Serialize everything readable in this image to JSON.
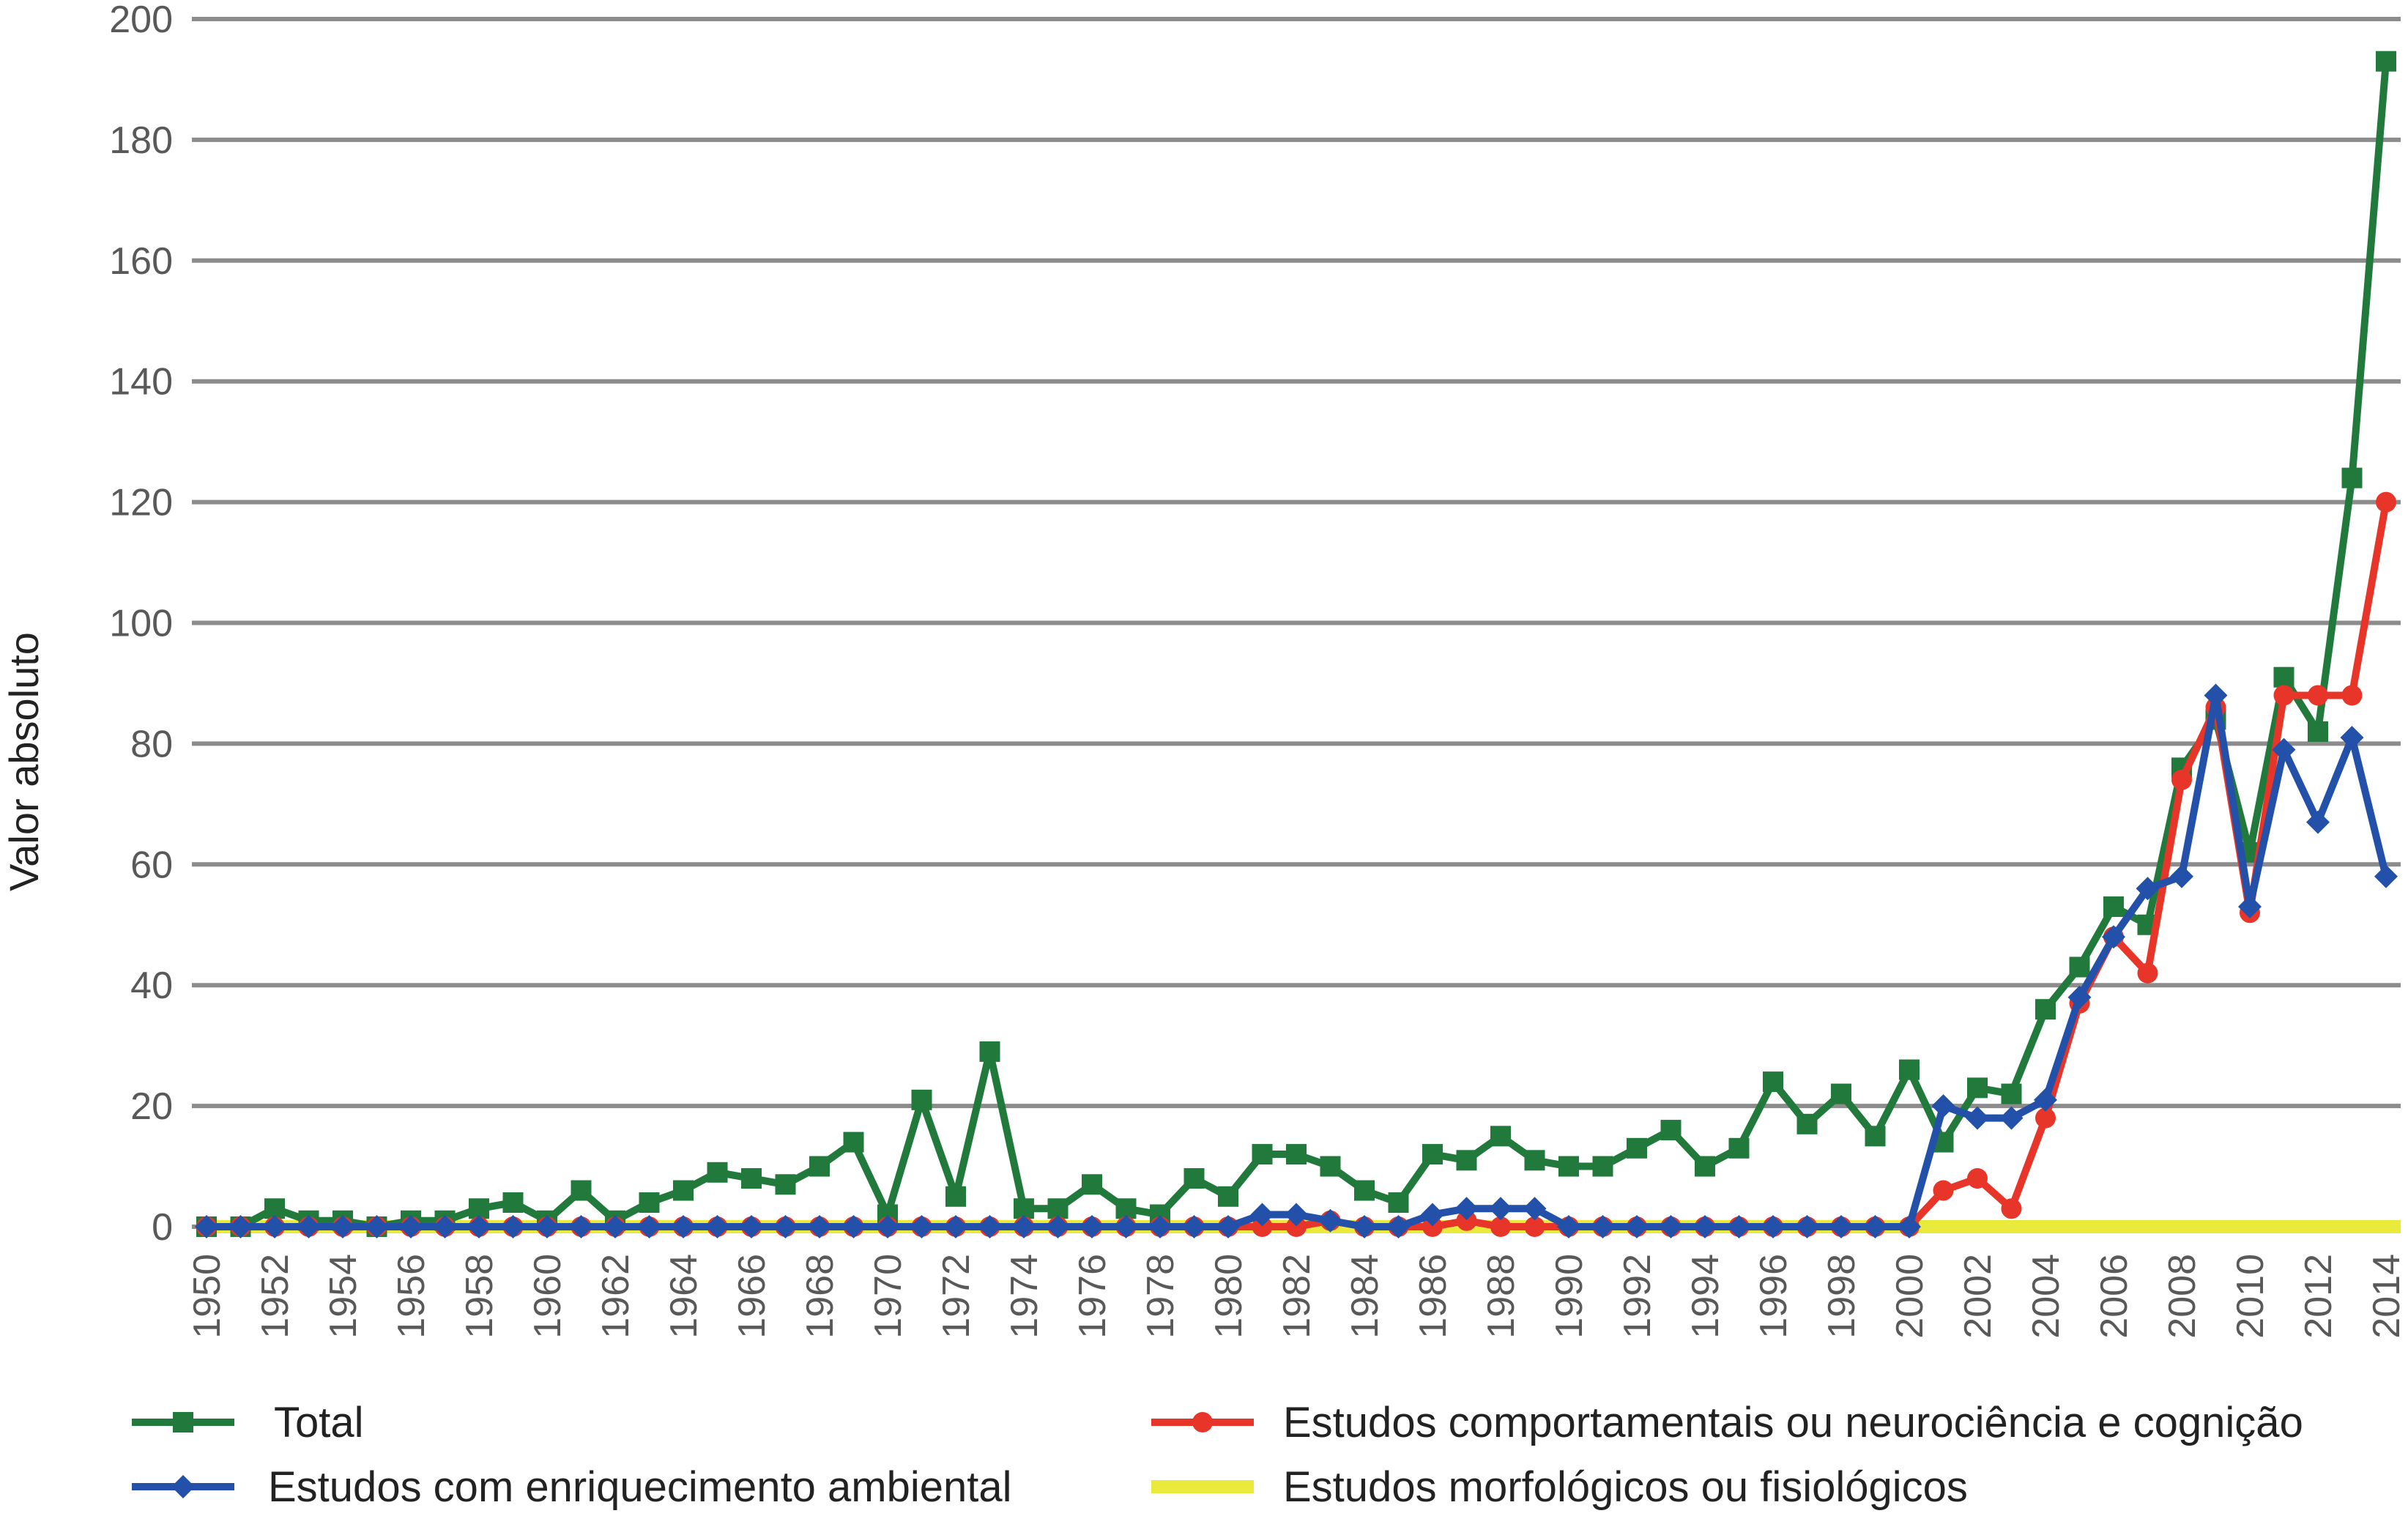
{
  "chart_data": {
    "type": "line",
    "ylabel": "Valor absoluto",
    "xlabel": "",
    "title": "",
    "ylim": [
      0,
      200
    ],
    "yticks": [
      "0",
      "20",
      "40",
      "60",
      "80",
      "100",
      "120",
      "140",
      "160",
      "180",
      "200"
    ],
    "x": [
      1950,
      1951,
      1952,
      1953,
      1954,
      1955,
      1956,
      1957,
      1958,
      1959,
      1960,
      1961,
      1962,
      1963,
      1964,
      1965,
      1966,
      1967,
      1968,
      1969,
      1970,
      1971,
      1972,
      1973,
      1974,
      1975,
      1976,
      1977,
      1978,
      1979,
      1980,
      1981,
      1982,
      1983,
      1984,
      1985,
      1986,
      1987,
      1988,
      1989,
      1990,
      1991,
      1992,
      1993,
      1994,
      1995,
      1996,
      1997,
      1998,
      1999,
      2000,
      2001,
      2002,
      2003,
      2004,
      2005,
      2006,
      2007,
      2008,
      2009,
      2010,
      2011,
      2012,
      2013,
      2014
    ],
    "xtick_labels": [
      "1950",
      "1952",
      "1954",
      "1956",
      "1958",
      "1960",
      "1962",
      "1964",
      "1966",
      "1968",
      "1970",
      "1972",
      "1974",
      "1976",
      "1978",
      "1980",
      "1982",
      "1984",
      "1986",
      "1988",
      "1990",
      "1992",
      "1994",
      "1996",
      "1998",
      "2000",
      "2002",
      "2004",
      "2006",
      "2008",
      "2010",
      "2012",
      "2014"
    ],
    "grid": true,
    "legend_position": "bottom",
    "series": [
      {
        "name": "Total",
        "color": "#217a3c",
        "marker": "square",
        "values": [
          0,
          0,
          3,
          1,
          1,
          0,
          1,
          1,
          3,
          4,
          1,
          6,
          1,
          4,
          6,
          9,
          8,
          7,
          10,
          14,
          2,
          21,
          5,
          29,
          3,
          3,
          7,
          3,
          2,
          8,
          5,
          12,
          12,
          10,
          6,
          4,
          12,
          11,
          15,
          11,
          10,
          10,
          13,
          16,
          10,
          13,
          24,
          17,
          22,
          15,
          26,
          14,
          23,
          22,
          36,
          43,
          53,
          50,
          76,
          84,
          62,
          91,
          82,
          124,
          193
        ]
      },
      {
        "name": "Estudos comportamentais ou neurociência e cognição",
        "color": "#e8352a",
        "marker": "circle",
        "values": [
          0,
          0,
          0,
          0,
          0,
          0,
          0,
          0,
          0,
          0,
          0,
          0,
          0,
          0,
          0,
          0,
          0,
          0,
          0,
          0,
          0,
          0,
          0,
          0,
          0,
          0,
          0,
          0,
          0,
          0,
          0,
          0,
          0,
          1,
          0,
          0,
          0,
          1,
          0,
          0,
          0,
          0,
          0,
          0,
          0,
          0,
          0,
          0,
          0,
          0,
          0,
          6,
          8,
          3,
          18,
          37,
          48,
          42,
          74,
          86,
          52,
          88,
          88,
          88,
          120
        ]
      },
      {
        "name": "Estudos com enriquecimento ambiental",
        "color": "#2350a8",
        "marker": "diamond",
        "values": [
          0,
          0,
          0,
          0,
          0,
          0,
          0,
          0,
          0,
          0,
          0,
          0,
          0,
          0,
          0,
          0,
          0,
          0,
          0,
          0,
          0,
          0,
          0,
          0,
          0,
          0,
          0,
          0,
          0,
          0,
          0,
          2,
          2,
          1,
          0,
          0,
          2,
          3,
          3,
          3,
          0,
          0,
          0,
          0,
          0,
          0,
          0,
          0,
          0,
          0,
          0,
          20,
          18,
          18,
          21,
          38,
          48,
          56,
          58,
          88,
          53,
          79,
          67,
          81,
          58
        ]
      },
      {
        "name": "Estudos morfológicos ou fisiológicos",
        "color": "#eaea3c",
        "marker": "none",
        "values": [
          0,
          0,
          0,
          0,
          0,
          0,
          0,
          0,
          0,
          0,
          0,
          0,
          0,
          0,
          0,
          0,
          0,
          0,
          0,
          0,
          0,
          0,
          0,
          0,
          0,
          0,
          0,
          0,
          0,
          0,
          0,
          0,
          0,
          0,
          0,
          0,
          0,
          0,
          0,
          0,
          0,
          0,
          0,
          0,
          0,
          0,
          0,
          0,
          0,
          0,
          0,
          0,
          0,
          0,
          0,
          0,
          0,
          0,
          0,
          0,
          0,
          0,
          0,
          0,
          0
        ]
      }
    ]
  }
}
